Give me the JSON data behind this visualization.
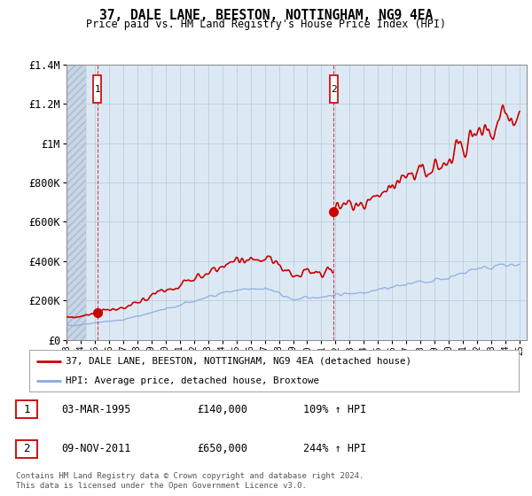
{
  "title": "37, DALE LANE, BEESTON, NOTTINGHAM, NG9 4EA",
  "subtitle": "Price paid vs. HM Land Registry's House Price Index (HPI)",
  "plot_bg_color": "#dce9f5",
  "ylim": [
    0,
    1400000
  ],
  "yticks": [
    0,
    200000,
    400000,
    600000,
    800000,
    1000000,
    1200000,
    1400000
  ],
  "ytick_labels": [
    "£0",
    "£200K",
    "£400K",
    "£600K",
    "£800K",
    "£1M",
    "£1.2M",
    "£1.4M"
  ],
  "xstart_year": 1993,
  "xend_year": 2025,
  "transaction1_year": 1995.17,
  "transaction1_price": 140000,
  "transaction2_year": 2011.86,
  "transaction2_price": 650000,
  "line1_color": "#cc0000",
  "line2_color": "#88aadd",
  "vline_color": "#cc0000",
  "annotation_box_color": "#cc0000",
  "legend_label1": "37, DALE LANE, BEESTON, NOTTINGHAM, NG9 4EA (detached house)",
  "legend_label2": "HPI: Average price, detached house, Broxtowe",
  "footer_text": "Contains HM Land Registry data © Crown copyright and database right 2024.\nThis data is licensed under the Open Government Licence v3.0.",
  "table_row1": [
    "1",
    "03-MAR-1995",
    "£140,000",
    "109% ↑ HPI"
  ],
  "table_row2": [
    "2",
    "09-NOV-2011",
    "£650,000",
    "244% ↑ HPI"
  ]
}
